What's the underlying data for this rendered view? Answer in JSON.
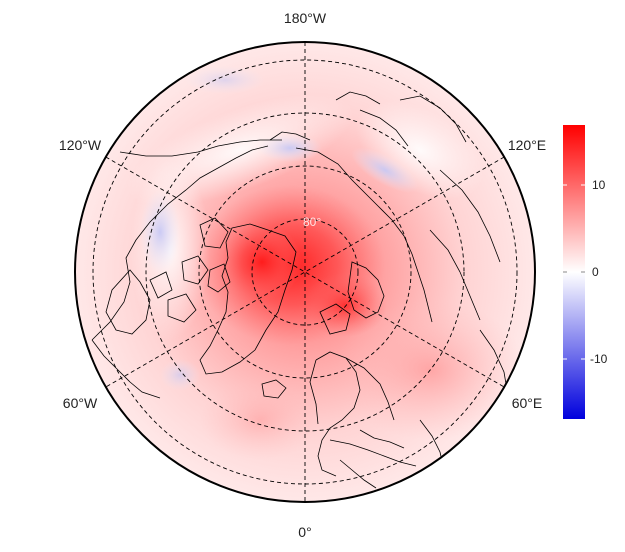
{
  "map": {
    "projection": "north-polar-stereographic",
    "longitude_labels": {
      "top": "180°W",
      "upper_left": "120°W",
      "upper_right": "120°E",
      "lower_left": "60°W",
      "lower_right": "60°E",
      "bottom": "0°"
    },
    "latitude_label": "80°",
    "graticule_style": "dashed",
    "anomaly_field": {
      "description_of_pattern": "strong warm anomaly over Greenland / central Arctic and Barents-Kara Sea, weak cool spots near Bering Strait and Siberian coast",
      "max_center": "Greenland and central Arctic",
      "secondary_max": "Barents-Kara Sea",
      "min_regions": [
        "Bering Strait",
        "East Siberian coast",
        "Canadian Arctic edge"
      ]
    }
  },
  "colorbar": {
    "ticks": [
      "10",
      "0",
      "-10"
    ],
    "range": [
      -17,
      17
    ],
    "colors": {
      "low": "#0000dd",
      "mid": "#ffffff",
      "high": "#ff0000"
    }
  }
}
